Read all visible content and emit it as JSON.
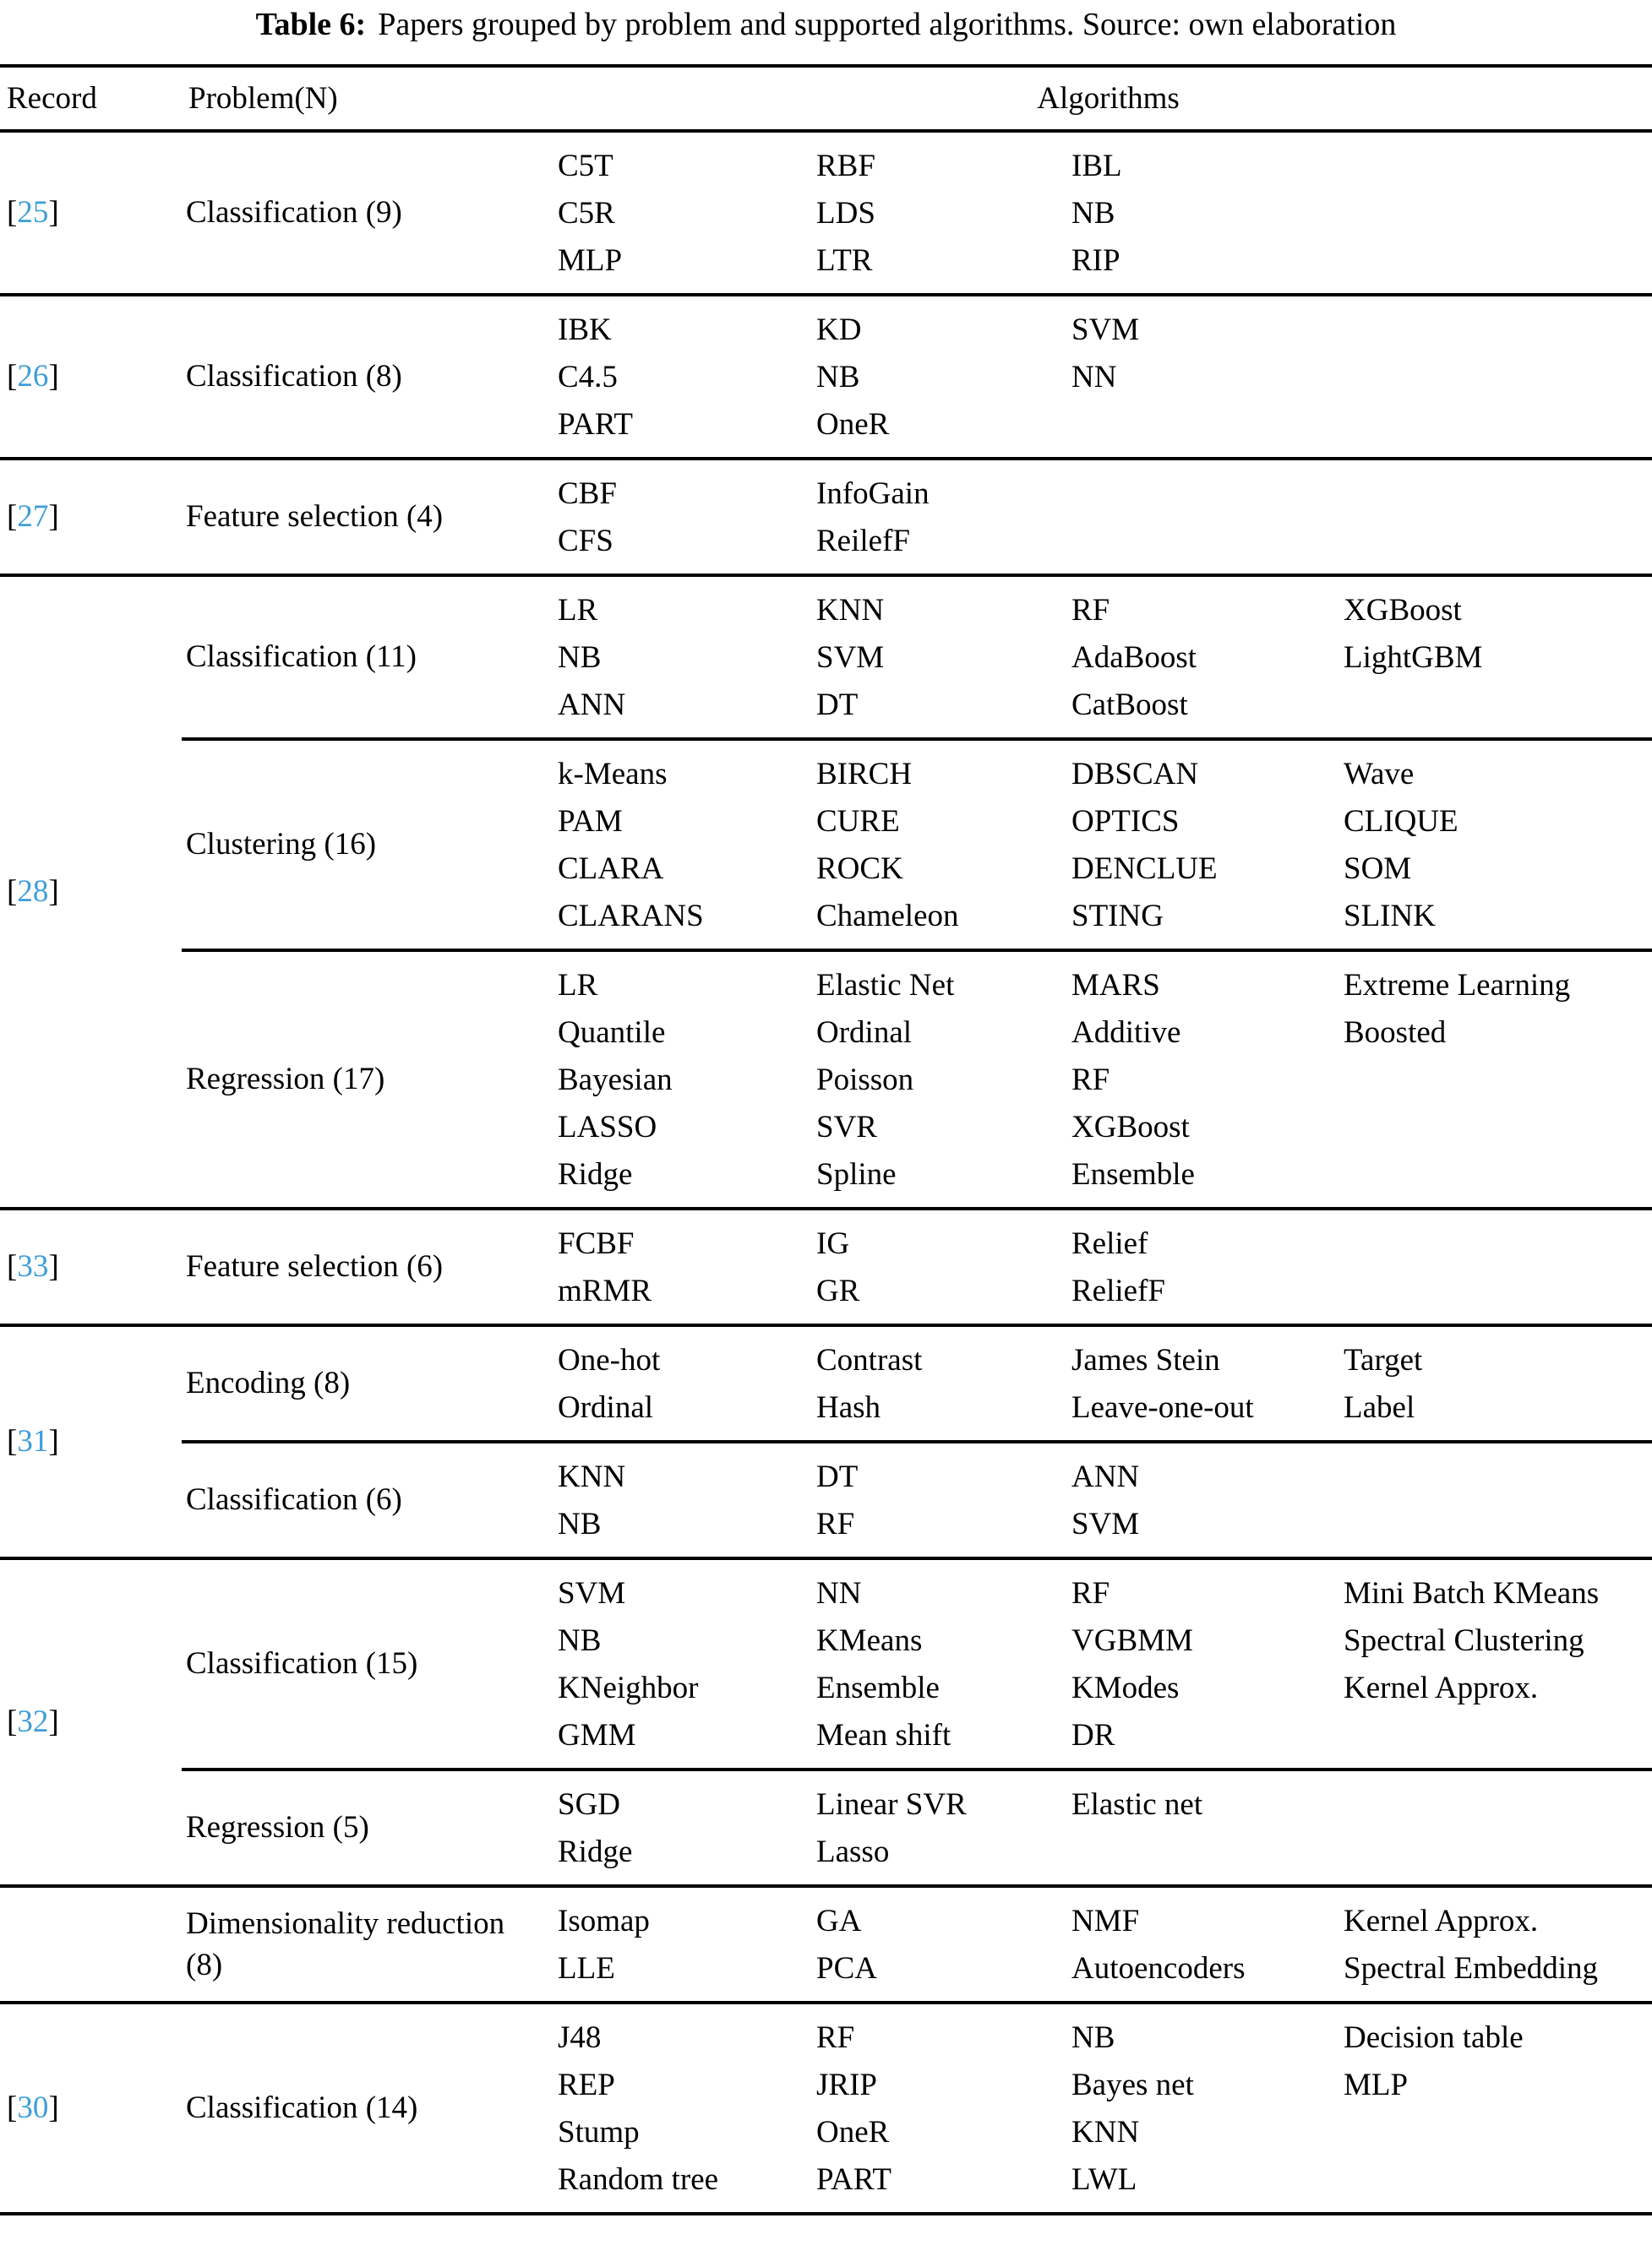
{
  "caption": {
    "label": "Table 6:",
    "text": "Papers grouped by problem and supported algorithms. Source: own elaboration"
  },
  "header": {
    "record": "Record",
    "problem": "Problem(N)",
    "algorithms": "Algorithms"
  },
  "symbols": {
    "bracket_open": "[",
    "bracket_close": "]"
  },
  "colors": {
    "citation": "#3D9ED9",
    "rule": "#000000"
  },
  "groups": [
    {
      "record": "25",
      "rows": [
        {
          "problem": "Classification (9)",
          "cols": [
            [
              "C5T",
              "C5R",
              "MLP"
            ],
            [
              "RBF",
              "LDS",
              "LTR"
            ],
            [
              "IBL",
              "NB",
              "RIP"
            ],
            []
          ]
        }
      ]
    },
    {
      "record": "26",
      "rows": [
        {
          "problem": "Classification (8)",
          "cols": [
            [
              "IBK",
              "C4.5",
              "PART"
            ],
            [
              "KD",
              "NB",
              "OneR"
            ],
            [
              "SVM",
              "NN"
            ],
            []
          ]
        }
      ]
    },
    {
      "record": "27",
      "rows": [
        {
          "problem": "Feature selection (4)",
          "cols": [
            [
              "CBF",
              "CFS"
            ],
            [
              "InfoGain",
              "ReilefF"
            ],
            [],
            []
          ]
        }
      ]
    },
    {
      "record": "28",
      "rows": [
        {
          "problem": "Classification (11)",
          "cols": [
            [
              "LR",
              "NB",
              "ANN"
            ],
            [
              "KNN",
              "SVM",
              "DT"
            ],
            [
              "RF",
              "AdaBoost",
              "CatBoost"
            ],
            [
              "XGBoost",
              "LightGBM"
            ]
          ]
        },
        {
          "problem": "Clustering (16)",
          "cols": [
            [
              "k-Means",
              "PAM",
              "CLARA",
              "CLARANS"
            ],
            [
              "BIRCH",
              "CURE",
              "ROCK",
              "Chameleon"
            ],
            [
              "DBSCAN",
              "OPTICS",
              "DENCLUE",
              "STING"
            ],
            [
              "Wave",
              "CLIQUE",
              "SOM",
              "SLINK"
            ]
          ]
        },
        {
          "problem": "Regression (17)",
          "cols": [
            [
              "LR",
              "Quantile",
              "Bayesian",
              "LASSO",
              "Ridge"
            ],
            [
              "Elastic Net",
              "Ordinal",
              "Poisson",
              "SVR",
              "Spline"
            ],
            [
              "MARS",
              "Additive",
              "RF",
              "XGBoost",
              "Ensemble"
            ],
            [
              "Extreme Learning",
              "Boosted"
            ]
          ]
        }
      ]
    },
    {
      "record": "33",
      "rows": [
        {
          "problem": "Feature selection (6)",
          "cols": [
            [
              "FCBF",
              "mRMR"
            ],
            [
              "IG",
              "GR"
            ],
            [
              "Relief",
              "ReliefF"
            ],
            []
          ]
        }
      ]
    },
    {
      "record": "31",
      "rows": [
        {
          "problem": "Encoding (8)",
          "cols": [
            [
              "One-hot",
              "Ordinal"
            ],
            [
              "Contrast",
              "Hash"
            ],
            [
              "James Stein",
              "Leave-one-out"
            ],
            [
              "Target",
              "Label"
            ]
          ]
        },
        {
          "problem": "Classification (6)",
          "cols": [
            [
              "KNN",
              "NB"
            ],
            [
              "DT",
              "RF"
            ],
            [
              "ANN",
              "SVM"
            ],
            []
          ]
        }
      ]
    },
    {
      "record": "32",
      "rows": [
        {
          "problem": "Classification (15)",
          "cols": [
            [
              "SVM",
              "NB",
              "KNeighbor",
              "GMM"
            ],
            [
              "NN",
              "KMeans",
              "Ensemble",
              "Mean shift"
            ],
            [
              "RF",
              "VGBMM",
              "KModes",
              "DR"
            ],
            [
              "Mini Batch KMeans",
              "Spectral Clustering",
              "Kernel Approx."
            ]
          ]
        },
        {
          "problem": "Regression (5)",
          "cols": [
            [
              "SGD",
              "Ridge"
            ],
            [
              "Linear SVR",
              "Lasso"
            ],
            [
              "Elastic net"
            ],
            []
          ]
        }
      ]
    },
    {
      "record": "",
      "rows": [
        {
          "problem": "Dimensionality reduction (8)",
          "cols": [
            [
              "Isomap",
              "LLE"
            ],
            [
              "GA",
              "PCA"
            ],
            [
              "NMF",
              "Autoencoders"
            ],
            [
              "Kernel Approx.",
              "Spectral Embedding"
            ]
          ]
        }
      ]
    },
    {
      "record": "30",
      "rows": [
        {
          "problem": "Classification (14)",
          "cols": [
            [
              "J48",
              "REP",
              "Stump",
              "Random tree"
            ],
            [
              "RF",
              "JRIP",
              "OneR",
              "PART"
            ],
            [
              "NB",
              "Bayes net",
              "KNN",
              "LWL"
            ],
            [
              "Decision table",
              "MLP"
            ]
          ]
        }
      ]
    }
  ]
}
